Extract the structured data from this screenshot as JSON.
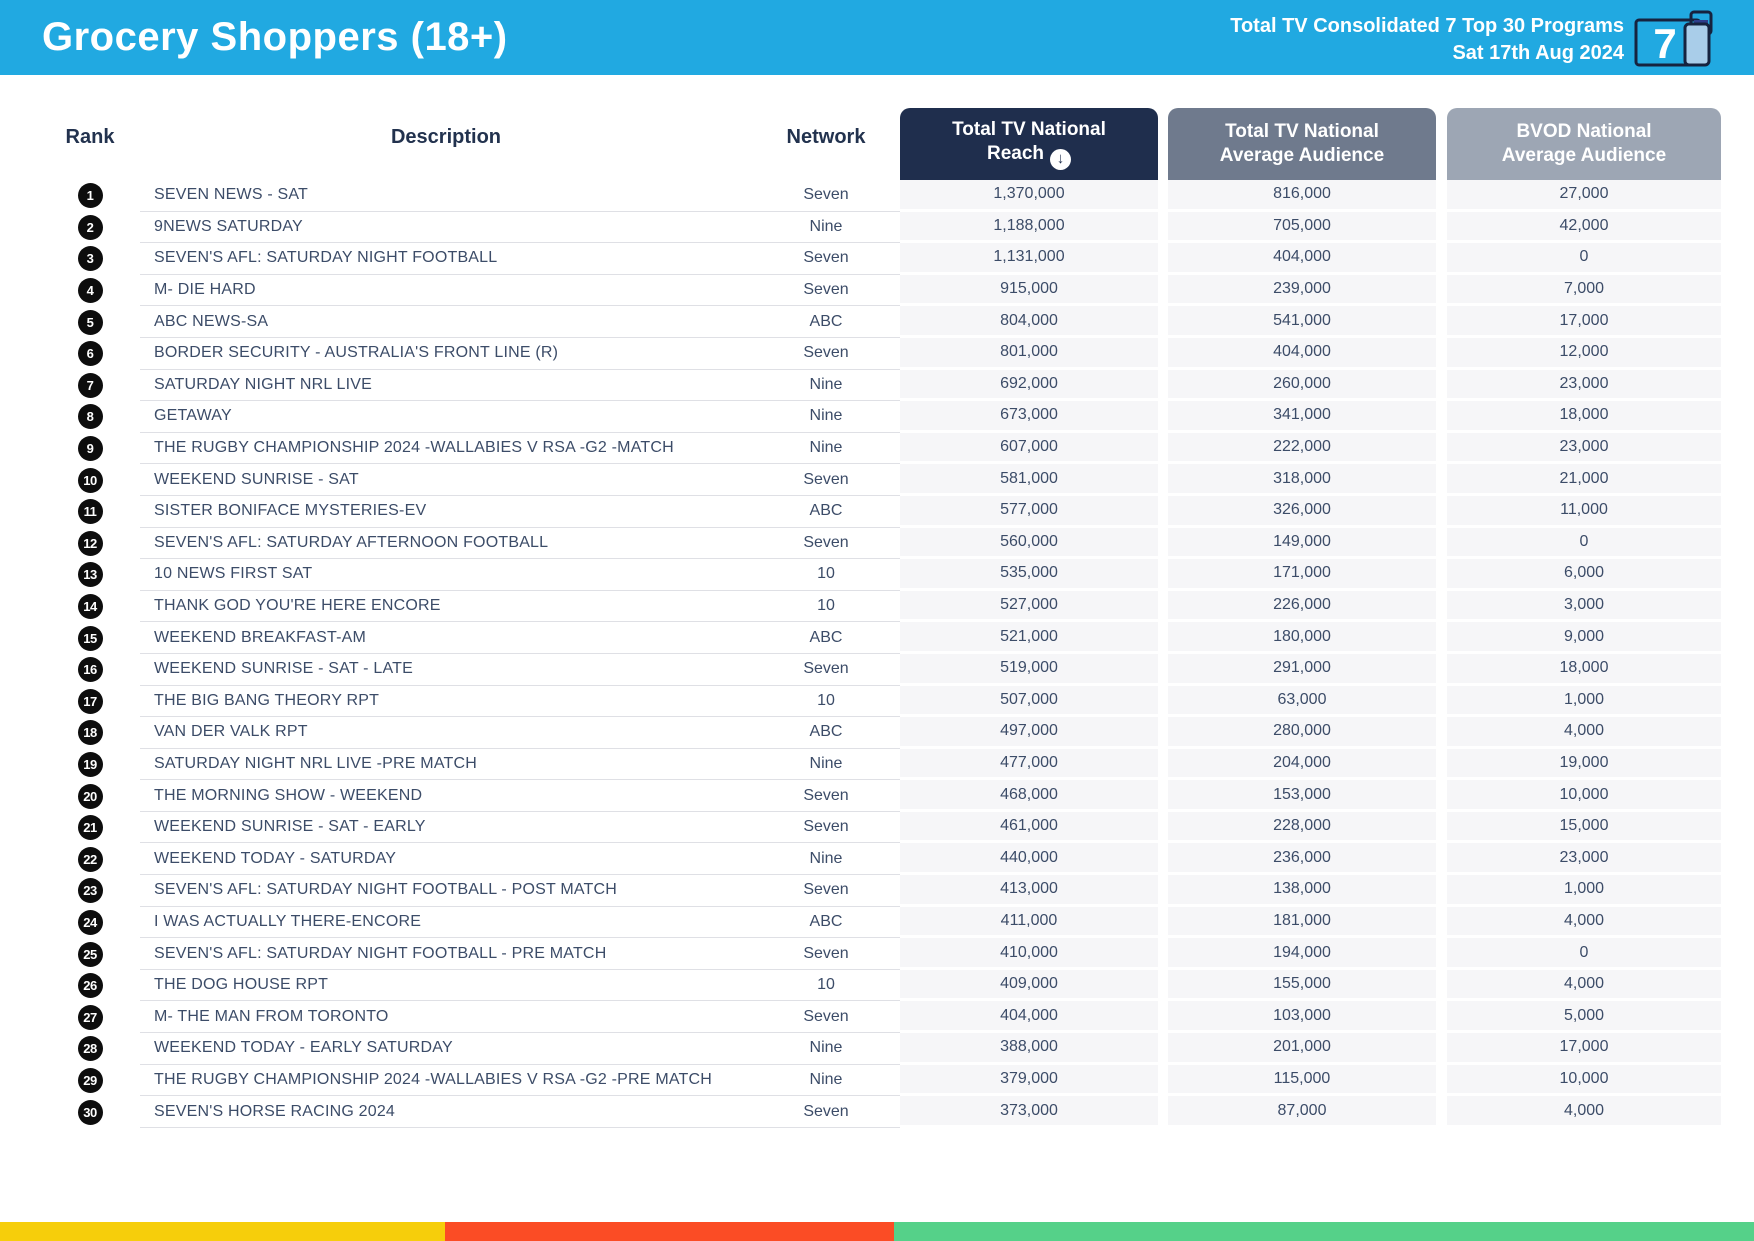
{
  "header": {
    "title": "Grocery Shoppers (18+)",
    "subtitle_line1": "Total TV Consolidated 7 Top 30 Programs",
    "subtitle_line2": "Sat 17th Aug 2024",
    "logo_number": "7",
    "bg_color": "#21A9E1"
  },
  "table_headers": {
    "rank": "Rank",
    "description": "Description",
    "network": "Network",
    "reach_line1": "Total TV National",
    "reach_line2": "Reach",
    "avg_line1": "Total TV National",
    "avg_line2": "Average Audience",
    "bvod_line1": "BVOD National",
    "bvod_line2": "Average Audience",
    "sort_arrow": "↓",
    "reach_bg": "#1F2E4D",
    "avg_bg": "#6F7A8D",
    "bvod_bg": "#9DA6B4"
  },
  "chart_data": {
    "type": "table",
    "title": "Grocery Shoppers (18+)",
    "subtitle": "Total TV Consolidated 7 Top 30 Programs - Sat 17th Aug 2024",
    "columns": [
      "Rank",
      "Description",
      "Network",
      "Total TV National Reach",
      "Total TV National Average Audience",
      "BVOD National Average Audience"
    ],
    "sort": "Total TV National Reach descending",
    "rows": [
      {
        "rank": "1",
        "description": "SEVEN NEWS - SAT",
        "network": "Seven",
        "reach": "1,370,000",
        "avg": "816,000",
        "bvod": "27,000"
      },
      {
        "rank": "2",
        "description": "9NEWS SATURDAY",
        "network": "Nine",
        "reach": "1,188,000",
        "avg": "705,000",
        "bvod": "42,000"
      },
      {
        "rank": "3",
        "description": "SEVEN'S AFL: SATURDAY NIGHT FOOTBALL",
        "network": "Seven",
        "reach": "1,131,000",
        "avg": "404,000",
        "bvod": "0"
      },
      {
        "rank": "4",
        "description": "M- DIE HARD",
        "network": "Seven",
        "reach": "915,000",
        "avg": "239,000",
        "bvod": "7,000"
      },
      {
        "rank": "5",
        "description": "ABC NEWS-SA",
        "network": "ABC",
        "reach": "804,000",
        "avg": "541,000",
        "bvod": "17,000"
      },
      {
        "rank": "6",
        "description": "BORDER SECURITY - AUSTRALIA'S FRONT LINE (R)",
        "network": "Seven",
        "reach": "801,000",
        "avg": "404,000",
        "bvod": "12,000"
      },
      {
        "rank": "7",
        "description": "SATURDAY NIGHT NRL LIVE",
        "network": "Nine",
        "reach": "692,000",
        "avg": "260,000",
        "bvod": "23,000"
      },
      {
        "rank": "8",
        "description": "GETAWAY",
        "network": "Nine",
        "reach": "673,000",
        "avg": "341,000",
        "bvod": "18,000"
      },
      {
        "rank": "9",
        "description": "THE RUGBY CHAMPIONSHIP 2024 -WALLABIES V RSA -G2 -MATCH",
        "network": "Nine",
        "reach": "607,000",
        "avg": "222,000",
        "bvod": "23,000"
      },
      {
        "rank": "10",
        "description": "WEEKEND SUNRISE - SAT",
        "network": "Seven",
        "reach": "581,000",
        "avg": "318,000",
        "bvod": "21,000"
      },
      {
        "rank": "11",
        "description": "SISTER BONIFACE MYSTERIES-EV",
        "network": "ABC",
        "reach": "577,000",
        "avg": "326,000",
        "bvod": "11,000"
      },
      {
        "rank": "12",
        "description": "SEVEN'S AFL: SATURDAY AFTERNOON FOOTBALL",
        "network": "Seven",
        "reach": "560,000",
        "avg": "149,000",
        "bvod": "0"
      },
      {
        "rank": "13",
        "description": "10 NEWS FIRST SAT",
        "network": "10",
        "reach": "535,000",
        "avg": "171,000",
        "bvod": "6,000"
      },
      {
        "rank": "14",
        "description": "THANK GOD YOU'RE HERE ENCORE",
        "network": "10",
        "reach": "527,000",
        "avg": "226,000",
        "bvod": "3,000"
      },
      {
        "rank": "15",
        "description": "WEEKEND BREAKFAST-AM",
        "network": "ABC",
        "reach": "521,000",
        "avg": "180,000",
        "bvod": "9,000"
      },
      {
        "rank": "16",
        "description": "WEEKEND SUNRISE - SAT - LATE",
        "network": "Seven",
        "reach": "519,000",
        "avg": "291,000",
        "bvod": "18,000"
      },
      {
        "rank": "17",
        "description": "THE BIG BANG THEORY RPT",
        "network": "10",
        "reach": "507,000",
        "avg": "63,000",
        "bvod": "1,000"
      },
      {
        "rank": "18",
        "description": "VAN DER VALK RPT",
        "network": "ABC",
        "reach": "497,000",
        "avg": "280,000",
        "bvod": "4,000"
      },
      {
        "rank": "19",
        "description": "SATURDAY NIGHT NRL LIVE -PRE MATCH",
        "network": "Nine",
        "reach": "477,000",
        "avg": "204,000",
        "bvod": "19,000"
      },
      {
        "rank": "20",
        "description": "THE MORNING SHOW - WEEKEND",
        "network": "Seven",
        "reach": "468,000",
        "avg": "153,000",
        "bvod": "10,000"
      },
      {
        "rank": "21",
        "description": "WEEKEND SUNRISE - SAT - EARLY",
        "network": "Seven",
        "reach": "461,000",
        "avg": "228,000",
        "bvod": "15,000"
      },
      {
        "rank": "22",
        "description": "WEEKEND TODAY - SATURDAY",
        "network": "Nine",
        "reach": "440,000",
        "avg": "236,000",
        "bvod": "23,000"
      },
      {
        "rank": "23",
        "description": "SEVEN'S AFL: SATURDAY NIGHT FOOTBALL - POST MATCH",
        "network": "Seven",
        "reach": "413,000",
        "avg": "138,000",
        "bvod": "1,000"
      },
      {
        "rank": "24",
        "description": "I WAS ACTUALLY THERE-ENCORE",
        "network": "ABC",
        "reach": "411,000",
        "avg": "181,000",
        "bvod": "4,000"
      },
      {
        "rank": "25",
        "description": "SEVEN'S AFL: SATURDAY NIGHT FOOTBALL - PRE MATCH",
        "network": "Seven",
        "reach": "410,000",
        "avg": "194,000",
        "bvod": "0"
      },
      {
        "rank": "26",
        "description": "THE DOG HOUSE RPT",
        "network": "10",
        "reach": "409,000",
        "avg": "155,000",
        "bvod": "4,000"
      },
      {
        "rank": "27",
        "description": "M- THE MAN FROM TORONTO",
        "network": "Seven",
        "reach": "404,000",
        "avg": "103,000",
        "bvod": "5,000"
      },
      {
        "rank": "28",
        "description": "WEEKEND TODAY - EARLY SATURDAY",
        "network": "Nine",
        "reach": "388,000",
        "avg": "201,000",
        "bvod": "17,000"
      },
      {
        "rank": "29",
        "description": "THE RUGBY CHAMPIONSHIP 2024 -WALLABIES V RSA -G2 -PRE MATCH",
        "network": "Nine",
        "reach": "379,000",
        "avg": "115,000",
        "bvod": "10,000"
      },
      {
        "rank": "30",
        "description": "SEVEN'S HORSE RACING 2024",
        "network": "Seven",
        "reach": "373,000",
        "avg": "87,000",
        "bvod": "4,000"
      }
    ]
  },
  "footer": {
    "segments": [
      {
        "color": "#F6CE0B",
        "width_pct": 25.37
      },
      {
        "color": "#FB4C25",
        "width_pct": 25.6
      },
      {
        "color": "#55D189",
        "width_pct": 49.03
      }
    ]
  }
}
